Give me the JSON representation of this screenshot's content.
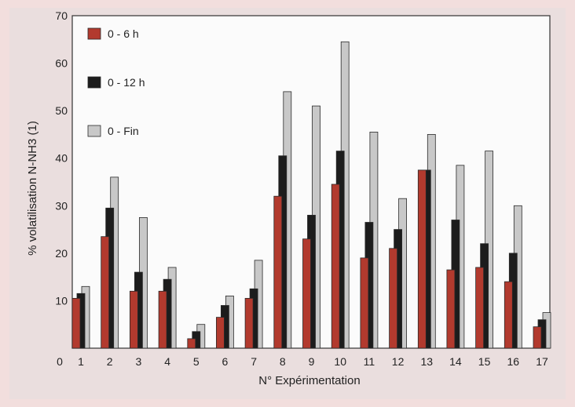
{
  "chart_data": {
    "type": "bar",
    "title": "",
    "xlabel": "N° Expérimentation",
    "ylabel": "% volatilisation N-NH3 (1)",
    "categories": [
      "1",
      "2",
      "3",
      "4",
      "5",
      "6",
      "7",
      "8",
      "9",
      "10",
      "11",
      "12",
      "13",
      "14",
      "15",
      "16",
      "17"
    ],
    "ylim": [
      0,
      70
    ],
    "yticks": [
      "10",
      "20",
      "30",
      "40",
      "50",
      "60",
      "70"
    ],
    "origin_label": "0",
    "grid": false,
    "legend_position": "top-left",
    "series": [
      {
        "name": "0 - 6 h",
        "color": "#b23a2e",
        "values": [
          10.5,
          23.5,
          12,
          12,
          2,
          6.5,
          10.5,
          32,
          23,
          34.5,
          19,
          21,
          37.5,
          16.5,
          17,
          14,
          4.5
        ]
      },
      {
        "name": "0 - 12 h",
        "color": "#1c1c1c",
        "values": [
          11.5,
          29.5,
          16,
          14.5,
          3.5,
          9,
          12.5,
          40.5,
          28,
          41.5,
          26.5,
          25,
          37.5,
          27,
          22,
          20,
          6
        ]
      },
      {
        "name": "0 - Fin",
        "color": "#c8c8c8",
        "values": [
          13,
          36,
          27.5,
          17,
          5,
          11,
          18.5,
          54,
          51,
          64.5,
          45.5,
          31.5,
          45,
          38.5,
          41.5,
          30,
          7.5
        ]
      }
    ]
  }
}
